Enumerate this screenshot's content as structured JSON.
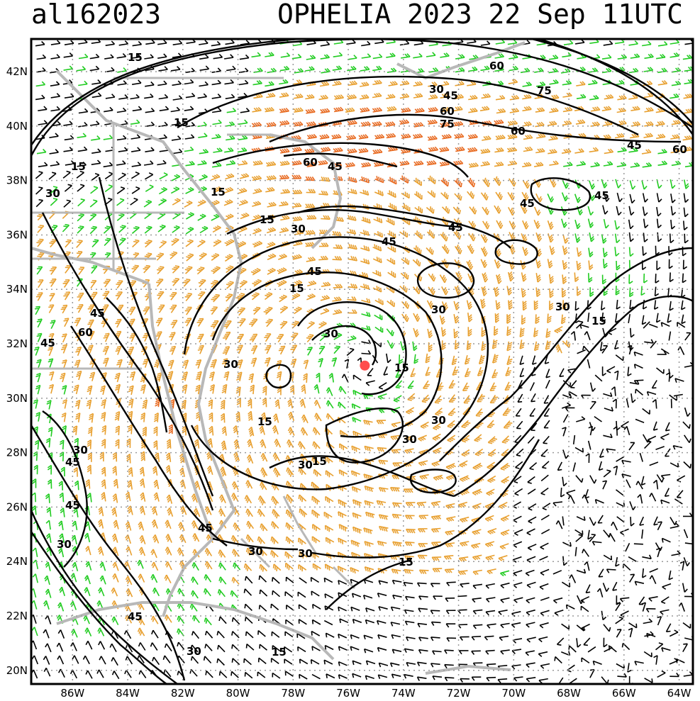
{
  "header": {
    "storm_id": "al162023",
    "storm_info": "OPHELIA 2023 22 Sep 11UTC"
  },
  "map": {
    "lon_range": [
      -87.5,
      -63.5
    ],
    "lat_range": [
      19.5,
      43.2
    ],
    "lon_ticks": [
      "86W",
      "84W",
      "82W",
      "80W",
      "78W",
      "76W",
      "74W",
      "72W",
      "70W",
      "68W",
      "66W",
      "64W"
    ],
    "lat_ticks": [
      "42N",
      "40N",
      "38N",
      "36N",
      "34N",
      "32N",
      "30N",
      "28N",
      "26N",
      "24N",
      "22N",
      "20N"
    ],
    "storm_center": {
      "lon": -75.4,
      "lat": 31.2
    },
    "contour_labels": [
      "15",
      "30",
      "45",
      "60",
      "75"
    ],
    "colors": {
      "coastline": "#b8b8b8",
      "grid": "#9a9a9a",
      "barb_calm": "#000000",
      "barb_breezy": "#22cc22",
      "barb_strong": "#e8a030",
      "barb_gale": "#e86a20",
      "barb_storm": "#e83030",
      "storm_marker": "#ff4d4d"
    }
  }
}
